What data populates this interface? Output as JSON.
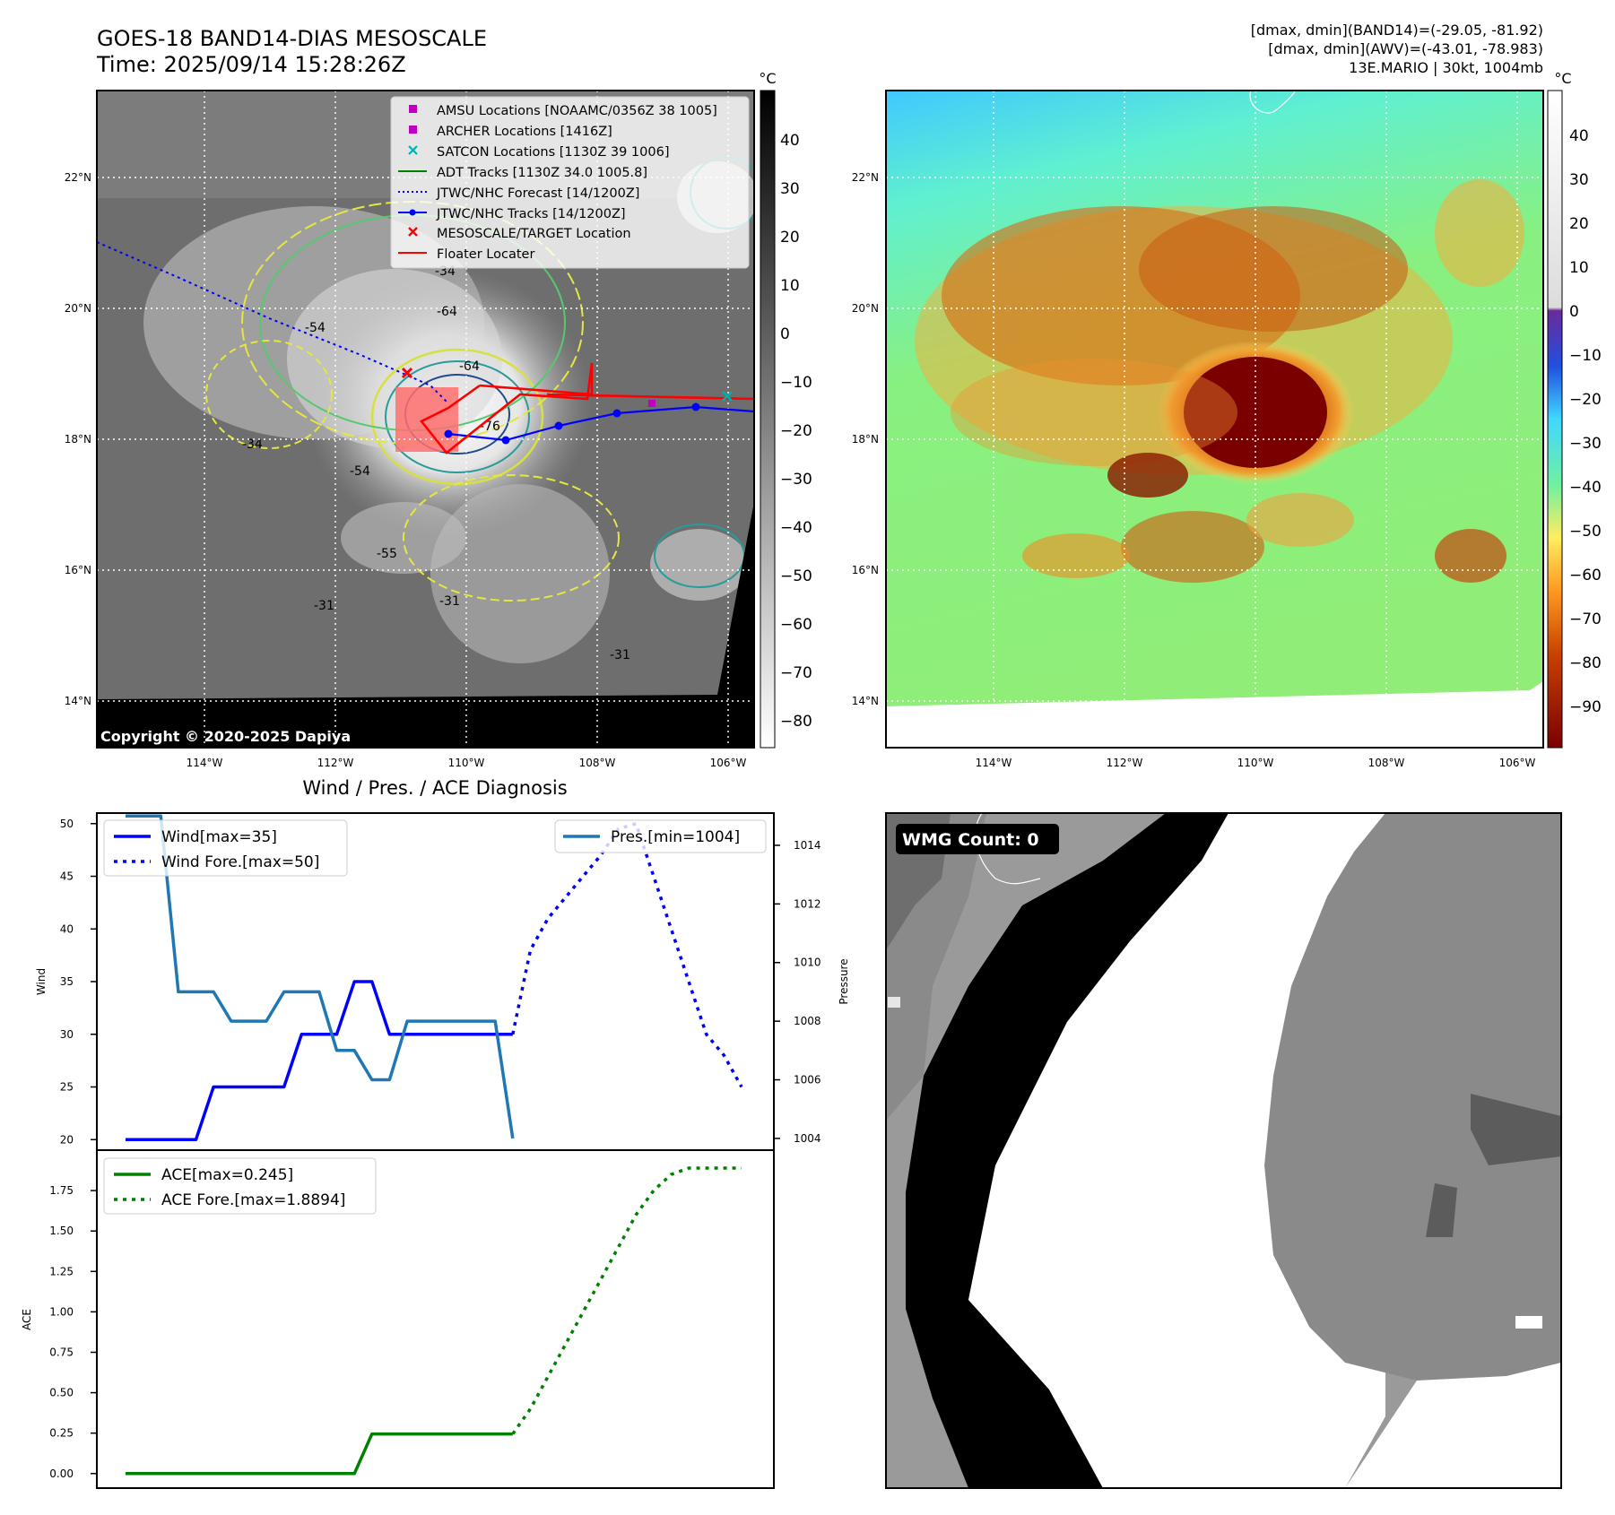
{
  "header": {
    "title_line1": "GOES-18 BAND14-DIAS MESOSCALE",
    "title_line2": "Time: 2025/09/14 15:28:26Z",
    "info_line1": "[dmax, dmin](BAND14)=(-29.05, -81.92)",
    "info_line2": "[dmax, dmin](AWV)=(-43.01, -78.983)",
    "info_line3": "13E.MARIO | 30kt, 1004mb"
  },
  "map": {
    "lat_labels": [
      "22°N",
      "20°N",
      "18°N",
      "16°N",
      "14°N"
    ],
    "lon_labels": [
      "114°W",
      "112°W",
      "110°W",
      "108°W",
      "106°W"
    ],
    "copyright": "Copyright © 2020-2025 Dapiya",
    "contour_labels": [
      "-34",
      "-64",
      "-54",
      "-64",
      "-76",
      "-54",
      "-34",
      "-31",
      "-31",
      "-31",
      "-55"
    ],
    "legend": [
      {
        "label": "AMSU Locations [NOAAMC/0356Z 38 1005]",
        "color": "#c000c0",
        "marker": "square"
      },
      {
        "label": "ARCHER Locations [1416Z]",
        "color": "#c000c0",
        "marker": "square"
      },
      {
        "label": "SATCON Locations [1130Z 39 1006]",
        "color": "#00b0b0",
        "marker": "x"
      },
      {
        "label": "ADT Tracks [1130Z 34.0 1005.8]",
        "color": "#008000",
        "marker": "line"
      },
      {
        "label": "JTWC/NHC Forecast [14/1200Z]",
        "color": "#0000ff",
        "marker": "dotted"
      },
      {
        "label": "JTWC/NHC Tracks [14/1200Z]",
        "color": "#0000ff",
        "marker": "line-dot"
      },
      {
        "label": "MESOSCALE/TARGET Location",
        "color": "#ff0000",
        "marker": "x"
      },
      {
        "label": "Floater Locater",
        "color": "#ff0000",
        "marker": "line"
      }
    ]
  },
  "colorbar_left": {
    "unit": "°C",
    "ticks": [
      "40",
      "30",
      "20",
      "10",
      "0",
      "−10",
      "−20",
      "−30",
      "−40",
      "−50",
      "−60",
      "−70",
      "−80"
    ]
  },
  "colorbar_right": {
    "unit": "°C",
    "ticks": [
      "40",
      "30",
      "20",
      "10",
      "0",
      "−10",
      "−20",
      "−30",
      "−40",
      "−50",
      "−60",
      "−70",
      "−80",
      "−90"
    ]
  },
  "wmg": {
    "label": "WMG Count: 0"
  },
  "colors": {
    "wind": "#0000ff",
    "pressure": "#1f77b4",
    "ace": "#008000",
    "floater": "#ff0000"
  },
  "chart_data": [
    {
      "type": "line",
      "title": "Wind / Pres. / ACE Diagnosis",
      "ylabel": "Wind",
      "y2label": "Pressure",
      "ylim": [
        19,
        51
      ],
      "yticks": [
        20,
        25,
        30,
        35,
        40,
        45,
        50
      ],
      "y2lim": [
        1003.6,
        1015.1
      ],
      "y2ticks": [
        1004,
        1006,
        1008,
        1010,
        1012,
        1014
      ],
      "series": [
        {
          "name": "Wind[max=35]",
          "axis": "left",
          "style": "solid",
          "color": "#0000ff",
          "x": [
            0,
            1,
            2,
            3,
            4,
            5,
            6,
            7,
            8,
            9,
            10,
            11,
            12,
            13,
            14,
            15,
            16,
            17,
            18,
            19,
            20,
            21,
            22
          ],
          "y": [
            20,
            20,
            20,
            20,
            20,
            25,
            25,
            25,
            25,
            25,
            30,
            30,
            30,
            35,
            35,
            30,
            30,
            30,
            30,
            30,
            30,
            30,
            30
          ]
        },
        {
          "name": "Wind Fore.[max=50]",
          "axis": "left",
          "style": "dotted",
          "color": "#0000ff",
          "x": [
            22,
            23,
            24,
            25,
            26,
            27,
            28,
            29,
            30,
            31,
            32,
            33,
            34,
            35
          ],
          "y": [
            30,
            38,
            41,
            43,
            45,
            47,
            49.5,
            50,
            45,
            40,
            35,
            30,
            28,
            25
          ]
        },
        {
          "name": "Pres.[min=1004]",
          "axis": "right",
          "style": "solid",
          "color": "#1f77b4",
          "x": [
            0,
            1,
            2,
            3,
            4,
            5,
            6,
            7,
            8,
            9,
            10,
            11,
            12,
            13,
            14,
            15,
            16,
            17,
            18,
            19,
            20,
            21,
            22
          ],
          "y": [
            1015,
            1015,
            1015,
            1009,
            1009,
            1009,
            1008,
            1008,
            1008,
            1009,
            1009,
            1009,
            1007,
            1007,
            1006,
            1006,
            1008,
            1008,
            1008,
            1008,
            1008,
            1008,
            1004
          ]
        }
      ]
    },
    {
      "type": "line",
      "ylabel": "ACE",
      "ylim": [
        -0.09,
        2.0
      ],
      "yticks": [
        "0.00",
        "0.25",
        "0.50",
        "0.75",
        "1.00",
        "1.25",
        "1.50",
        "1.75"
      ],
      "series": [
        {
          "name": "ACE[max=0.245]",
          "style": "solid",
          "color": "#008000",
          "x": [
            0,
            1,
            2,
            3,
            4,
            5,
            6,
            7,
            8,
            9,
            10,
            11,
            12,
            13,
            14,
            15,
            16,
            17,
            18,
            19,
            20,
            21,
            22
          ],
          "y": [
            0,
            0,
            0,
            0,
            0,
            0,
            0,
            0,
            0,
            0,
            0,
            0,
            0,
            0,
            0.245,
            0.245,
            0.245,
            0.245,
            0.245,
            0.245,
            0.245,
            0.245,
            0.245
          ]
        },
        {
          "name": "ACE Fore.[max=1.8894]",
          "style": "dotted",
          "color": "#008000",
          "x": [
            22,
            23,
            24,
            25,
            26,
            27,
            28,
            29,
            30,
            31,
            32,
            33,
            34,
            35
          ],
          "y": [
            0.245,
            0.4,
            0.6,
            0.8,
            1.0,
            1.2,
            1.4,
            1.6,
            1.75,
            1.85,
            1.8894,
            1.8894,
            1.8894,
            1.8894
          ]
        }
      ]
    }
  ]
}
